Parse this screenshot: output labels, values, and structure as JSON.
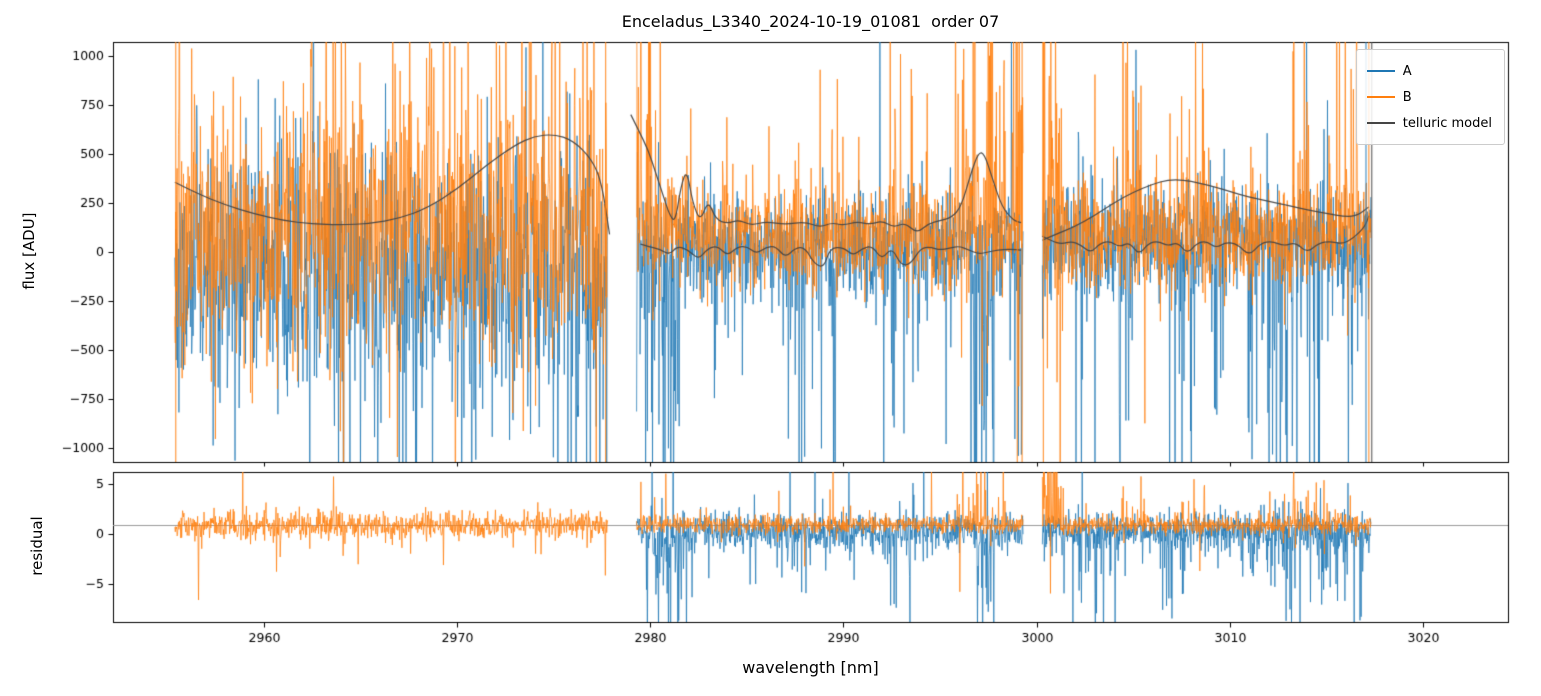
{
  "chart_data": {
    "type": "line",
    "title": "Enceladus_L3340_2024-10-19_01081  order 07",
    "xlabel": "wavelength [nm]",
    "xlim": [
      2952.2,
      3024.4
    ],
    "x_ticks": [
      2960,
      2970,
      2980,
      2990,
      3000,
      3010,
      3020
    ],
    "seed": 20241019,
    "top": {
      "ylabel": "flux [ADU]",
      "ylim": [
        -1070,
        1070
      ],
      "y_ticks": [
        1000,
        750,
        500,
        250,
        0,
        -250,
        -500,
        -750,
        -1000
      ]
    },
    "bottom": {
      "ylabel": "residual",
      "ylim": [
        -8.8,
        6.2
      ],
      "y_ticks": [
        5,
        0,
        -5
      ],
      "hline": 0.9,
      "hline_color": "#9a9a9a"
    },
    "series": [
      {
        "name": "A",
        "color": "#1f77b4"
      },
      {
        "name": "B",
        "color": "#ff7f0e"
      },
      {
        "name": "telluric model",
        "color": "#454545"
      }
    ],
    "legend_position": "upper right",
    "segments": [
      {
        "x0": 2955.4,
        "x1": 2977.8,
        "n": 950,
        "flux": {
          "A": {
            "base": -60,
            "sigma": 320,
            "sign": -1,
            "prob": 0.05,
            "scale": 650,
            "zones": [
              [
                2955.4,
                2962,
                0.1,
                600
              ],
              [
                2962,
                2977.8,
                0.22,
                900
              ]
            ]
          },
          "B": {
            "base": 90,
            "sigma": 320,
            "sign": 1,
            "prob": 0.06,
            "scale": 650,
            "zones": [
              [
                2955.4,
                2962,
                0.12,
                650
              ],
              [
                2962,
                2977.8,
                0.26,
                950
              ]
            ]
          }
        },
        "residual": {
          "A": null,
          "B": {
            "base": 0.9,
            "sigma": 0.7,
            "sign": -1,
            "prob": 0.02,
            "scale": 3.5,
            "zones": [
              [
                2958,
                2968,
                0.035,
                3.5
              ],
              [
                2976.5,
                2977.8,
                0.15,
                4.5
              ]
            ]
          }
        }
      },
      {
        "x0": 2979.3,
        "x1": 2999.3,
        "n": 900,
        "flux": {
          "A": {
            "base": 30,
            "sigma": 140,
            "sign": -1,
            "prob": 0.05,
            "scale": 500,
            "zones": [
              [
                2979.3,
                2981.6,
                0.45,
                1000
              ],
              [
                2983.3,
                2984.6,
                0.2,
                700
              ],
              [
                2986.8,
                2989.6,
                0.22,
                800
              ],
              [
                2991.3,
                2994.2,
                0.22,
                900
              ],
              [
                2996.6,
                2997.8,
                0.5,
                1100
              ],
              [
                2998.6,
                2999.3,
                0.3,
                900
              ]
            ]
          },
          "B": {
            "base": 80,
            "sigma": 140,
            "sign": 1,
            "prob": 0.05,
            "scale": 420,
            "zones": [
              [
                2979.3,
                2980.6,
                0.35,
                1000
              ],
              [
                2989.4,
                2990.6,
                0.25,
                800
              ],
              [
                2992.4,
                2993.6,
                0.2,
                700
              ],
              [
                2995.8,
                2998.4,
                0.45,
                1000
              ],
              [
                2998.8,
                2999.3,
                0.5,
                1100
              ]
            ]
          }
        },
        "residual": {
          "A": {
            "base": 0.3,
            "sigma": 0.9,
            "sign": -1,
            "prob": 0.08,
            "scale": 4,
            "zones": [
              [
                2979.8,
                2981.8,
                0.55,
                7
              ],
              [
                2986.8,
                2989.6,
                0.2,
                5
              ],
              [
                2991.3,
                2994.2,
                0.2,
                5.5
              ],
              [
                2996.6,
                2997.8,
                0.4,
                6.5
              ]
            ]
          },
          "B": {
            "base": 0.9,
            "sigma": 0.45,
            "sign": 1,
            "prob": 0.04,
            "scale": 2.5,
            "zones": [
              [
                2989.4,
                2990.6,
                0.25,
                3.5
              ],
              [
                2995.8,
                2998.4,
                0.3,
                4
              ]
            ]
          }
        }
      },
      {
        "x0": 3000.3,
        "x1": 3017.3,
        "n": 850,
        "flux": {
          "A": {
            "base": 60,
            "sigma": 140,
            "sign": -1,
            "prob": 0.06,
            "scale": 500,
            "zones": [
              [
                3001.8,
                3003.2,
                0.25,
                800
              ],
              [
                3003.8,
                3004.8,
                0.25,
                800
              ],
              [
                3006.4,
                3008.4,
                0.25,
                850
              ],
              [
                3009,
                3009.9,
                0.25,
                800
              ],
              [
                3010.8,
                3016.9,
                0.3,
                850
              ]
            ]
          },
          "B": {
            "base": 80,
            "sigma": 140,
            "sign": 1,
            "prob": 0.05,
            "scale": 420,
            "zones": [
              [
                3000.3,
                3001.4,
                0.5,
                1100
              ],
              [
                3004.4,
                3005.6,
                0.25,
                800
              ],
              [
                3007.5,
                3008.7,
                0.25,
                800
              ],
              [
                3012.7,
                3014.1,
                0.25,
                750
              ],
              [
                3015.4,
                3016.6,
                0.25,
                750
              ]
            ]
          }
        },
        "residual": {
          "A": {
            "base": 0.3,
            "sigma": 0.9,
            "sign": -1,
            "prob": 0.08,
            "scale": 4,
            "zones": [
              [
                3001.8,
                3004.8,
                0.25,
                5.5
              ],
              [
                3006.4,
                3008.4,
                0.25,
                5.5
              ],
              [
                3010.8,
                3016.9,
                0.3,
                5.5
              ]
            ]
          },
          "B": {
            "base": 0.9,
            "sigma": 0.45,
            "sign": 1,
            "prob": 0.04,
            "scale": 2.5,
            "zones": [
              [
                3000.3,
                3001.4,
                0.5,
                7
              ],
              [
                3004.4,
                3005.6,
                0.25,
                3.5
              ],
              [
                3007.5,
                3008.7,
                0.25,
                3.5
              ],
              [
                3012.7,
                3016.6,
                0.2,
                3.5
              ]
            ]
          }
        }
      }
    ],
    "telluric": [
      [
        [
          2955.4,
          355
        ],
        [
          2956.5,
          300
        ],
        [
          2958,
          240
        ],
        [
          2959.5,
          195
        ],
        [
          2961,
          160
        ],
        [
          2962.5,
          143
        ],
        [
          2964,
          138
        ],
        [
          2965.5,
          145
        ],
        [
          2967,
          170
        ],
        [
          2968.5,
          225
        ],
        [
          2970,
          320
        ],
        [
          2971.5,
          440
        ],
        [
          2973,
          545
        ],
        [
          2974,
          590
        ],
        [
          2975,
          600
        ],
        [
          2976,
          570
        ],
        [
          2977,
          470
        ],
        [
          2977.5,
          350
        ],
        [
          2977.9,
          90
        ]
      ],
      [
        [
          2979.0,
          700
        ],
        [
          2979.4,
          620
        ],
        [
          2979.9,
          520
        ],
        [
          2980.3,
          400
        ],
        [
          2980.7,
          280
        ],
        [
          2981.0,
          190
        ],
        [
          2981.3,
          150
        ],
        [
          2981.6,
          340
        ],
        [
          2981.9,
          420
        ],
        [
          2982.2,
          250
        ],
        [
          2982.6,
          155
        ],
        [
          2983.0,
          265
        ],
        [
          2983.4,
          165
        ],
        [
          2984,
          145
        ],
        [
          2984.6,
          165
        ],
        [
          2985.2,
          135
        ],
        [
          2986,
          155
        ],
        [
          2987,
          140
        ],
        [
          2988,
          155
        ],
        [
          2988.8,
          125
        ],
        [
          2989.4,
          150
        ],
        [
          2990,
          135
        ],
        [
          2990.7,
          155
        ],
        [
          2991.4,
          140
        ],
        [
          2992,
          160
        ],
        [
          2992.6,
          125
        ],
        [
          2993.2,
          150
        ],
        [
          2993.8,
          95
        ],
        [
          2994.4,
          145
        ],
        [
          2995,
          160
        ],
        [
          2995.6,
          175
        ],
        [
          2996.1,
          230
        ],
        [
          2996.6,
          400
        ],
        [
          2997.0,
          510
        ],
        [
          2997.3,
          500
        ],
        [
          2997.7,
          380
        ],
        [
          2998.2,
          230
        ],
        [
          2998.8,
          160
        ],
        [
          2999.2,
          150
        ]
      ],
      [
        [
          2979.5,
          40
        ],
        [
          2980.0,
          25
        ],
        [
          2980.5,
          15
        ],
        [
          2981.0,
          -15
        ],
        [
          2981.4,
          30
        ],
        [
          2982,
          10
        ],
        [
          2982.5,
          -40
        ],
        [
          2983,
          20
        ],
        [
          2983.5,
          30
        ],
        [
          2984,
          -20
        ],
        [
          2984.5,
          25
        ],
        [
          2985,
          30
        ],
        [
          2985.5,
          -10
        ],
        [
          2986,
          25
        ],
        [
          2986.5,
          30
        ],
        [
          2987,
          -30
        ],
        [
          2987.5,
          20
        ],
        [
          2988,
          25
        ],
        [
          2988.5,
          -60
        ],
        [
          2989,
          -80
        ],
        [
          2989.3,
          20
        ],
        [
          2990,
          25
        ],
        [
          2990.5,
          -20
        ],
        [
          2991,
          20
        ],
        [
          2991.5,
          30
        ],
        [
          2992,
          -40
        ],
        [
          2992.5,
          25
        ],
        [
          2993,
          -70
        ],
        [
          2993.5,
          -60
        ],
        [
          2994,
          20
        ],
        [
          2994.5,
          25
        ],
        [
          2995,
          10
        ],
        [
          2995.5,
          20
        ],
        [
          2996,
          30
        ],
        [
          2996.5,
          10
        ],
        [
          2997,
          -10
        ],
        [
          2997.5,
          0
        ],
        [
          2998,
          10
        ],
        [
          2998.6,
          15
        ],
        [
          2999.2,
          10
        ]
      ],
      [
        [
          3000.3,
          60
        ],
        [
          3001,
          90
        ],
        [
          3002,
          130
        ],
        [
          3003,
          185
        ],
        [
          3004,
          250
        ],
        [
          3005,
          305
        ],
        [
          3006,
          345
        ],
        [
          3006.8,
          368
        ],
        [
          3007.6,
          368
        ],
        [
          3008.4,
          352
        ],
        [
          3009.2,
          332
        ],
        [
          3010,
          308
        ],
        [
          3011,
          280
        ],
        [
          3012,
          258
        ],
        [
          3013,
          238
        ],
        [
          3014,
          215
        ],
        [
          3015,
          196
        ],
        [
          3016,
          180
        ],
        [
          3016.6,
          185
        ],
        [
          3017.2,
          230
        ]
      ],
      [
        [
          3000.3,
          80
        ],
        [
          3000.8,
          55
        ],
        [
          3001.3,
          40
        ],
        [
          3001.8,
          55
        ],
        [
          3002.3,
          35
        ],
        [
          3002.8,
          -5
        ],
        [
          3003.3,
          45
        ],
        [
          3003.8,
          55
        ],
        [
          3004.3,
          25
        ],
        [
          3004.8,
          50
        ],
        [
          3005.3,
          -15
        ],
        [
          3005.8,
          45
        ],
        [
          3006.3,
          55
        ],
        [
          3006.8,
          30
        ],
        [
          3007.3,
          50
        ],
        [
          3007.8,
          -10
        ],
        [
          3008.3,
          45
        ],
        [
          3008.8,
          55
        ],
        [
          3009.3,
          20
        ],
        [
          3009.8,
          50
        ],
        [
          3010.4,
          40
        ],
        [
          3011,
          -20
        ],
        [
          3011.6,
          45
        ],
        [
          3012.2,
          55
        ],
        [
          3012.8,
          30
        ],
        [
          3013.4,
          50
        ],
        [
          3014,
          -5
        ],
        [
          3014.6,
          45
        ],
        [
          3015.2,
          55
        ],
        [
          3015.8,
          40
        ],
        [
          3016.4,
          70
        ],
        [
          3017,
          130
        ],
        [
          3017.2,
          185
        ]
      ]
    ],
    "vlines": [
      {
        "x": 2955.45,
        "s": "B"
      },
      {
        "x": 2977.7,
        "s": "B"
      },
      {
        "x": 2999.0,
        "s": "B"
      },
      {
        "x": 2999.25,
        "s": "B"
      },
      {
        "x": 3000.35,
        "s": "B"
      },
      {
        "x": 3017.05,
        "s": "A"
      },
      {
        "x": 3017.2,
        "s": "B"
      },
      {
        "x": 3017.35,
        "s": "T"
      }
    ]
  }
}
